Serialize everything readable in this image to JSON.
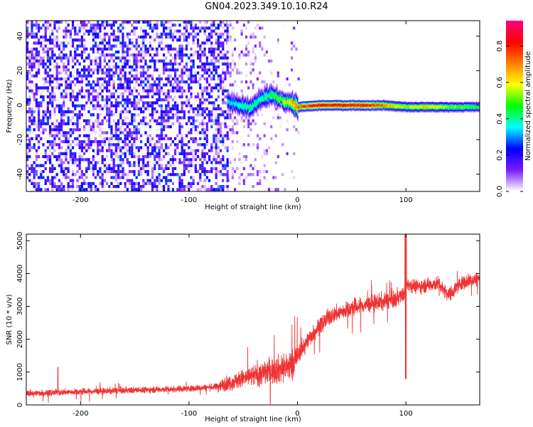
{
  "title": "GN04.2023.349.10.10.R24",
  "chart_data": [
    {
      "type": "heatmap",
      "xlabel": "Height of straight line (km)",
      "ylabel": "Frequency (Hz)",
      "xlim": [
        -250,
        168
      ],
      "ylim": [
        -50,
        49
      ],
      "x_ticks": [
        -200,
        -100,
        0,
        100
      ],
      "y_ticks": [
        -40,
        -20,
        0,
        20,
        40
      ],
      "colorbar": {
        "label": "Normalized spectral amplitude",
        "range": [
          0,
          0.94
        ],
        "ticks": [
          0.0,
          0.2,
          0.4,
          0.6,
          0.8
        ],
        "colormap": [
          "#ffffff",
          "#7a1cff",
          "#0000ff",
          "#00ffff",
          "#00ff00",
          "#ffff00",
          "#ff7f00",
          "#ff0000",
          "#ff0080"
        ]
      },
      "description_points": {
        "noise_region_x": [
          -250,
          -65
        ],
        "ridge": {
          "x": [
            -65,
            -55,
            -45,
            -35,
            -25,
            -15,
            -5,
            0,
            20,
            40,
            60,
            80,
            100,
            120,
            140,
            168
          ],
          "frequency": [
            2,
            0,
            -2,
            3,
            6,
            3,
            1,
            -1,
            0,
            0,
            0,
            0,
            -1,
            -1,
            -1,
            -1
          ],
          "amplitude": [
            0.35,
            0.4,
            0.45,
            0.42,
            0.45,
            0.55,
            0.7,
            0.8,
            0.9,
            0.92,
            0.9,
            0.75,
            0.6,
            0.7,
            0.55,
            0.5
          ]
        }
      }
    },
    {
      "type": "line",
      "xlabel": "Height of straight line (km)",
      "ylabel": "SNR (10 * v/v)",
      "xlim": [
        -250,
        168
      ],
      "ylim": [
        0,
        5200
      ],
      "x_ticks": [
        -200,
        -100,
        0,
        100
      ],
      "y_ticks": [
        0,
        1000,
        2000,
        3000,
        4000,
        5000
      ],
      "series": [
        {
          "color": "#f03333",
          "x": [
            -250,
            -200,
            -150,
            -100,
            -75,
            -50,
            -30,
            -15,
            -5,
            0,
            10,
            20,
            30,
            50,
            70,
            90,
            99,
            101,
            110,
            130,
            140,
            150,
            160,
            168
          ],
          "values": [
            350,
            400,
            450,
            500,
            550,
            800,
            1000,
            1100,
            1200,
            1500,
            2000,
            2400,
            2700,
            2950,
            3100,
            3200,
            3400,
            3700,
            3600,
            3700,
            3350,
            3700,
            3800,
            3850
          ]
        }
      ]
    }
  ]
}
